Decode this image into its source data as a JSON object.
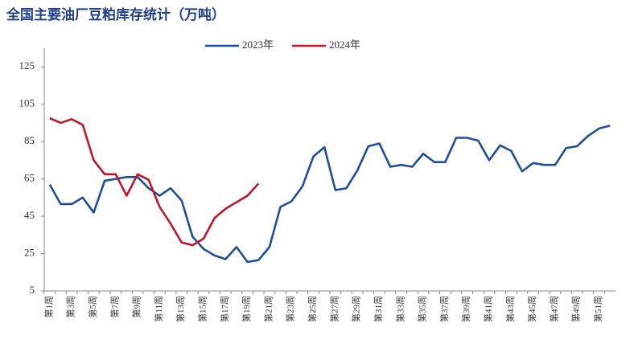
{
  "chart_data": {
    "type": "line",
    "title": "全国主要油厂豆粕库存统计（万吨）",
    "categories": [
      "第1周",
      null,
      "第3周",
      null,
      "第5周",
      null,
      "第7周",
      null,
      "第9周",
      null,
      "第11周",
      null,
      "第13周",
      null,
      "第15周",
      null,
      "第17周",
      null,
      "第19周",
      null,
      "第21周",
      null,
      "第23周",
      null,
      "第25周",
      null,
      "第27周",
      null,
      "第29周",
      null,
      "第31周",
      null,
      "第33周",
      null,
      "第35周",
      null,
      "第37周",
      null,
      "第39周",
      null,
      "第41周",
      null,
      "第43周",
      null,
      "第45周",
      null,
      "第47周",
      null,
      "第49周",
      null,
      "第51周",
      null
    ],
    "series": [
      {
        "name": "2023年",
        "color": "#1f4e9a",
        "values": [
          62,
          51.5,
          51.5,
          55,
          47,
          64,
          65,
          66,
          66,
          60,
          56,
          60,
          53.5,
          34,
          27.5,
          24,
          22,
          28.5,
          20.5,
          21.5,
          28.5,
          50,
          53,
          61,
          77,
          82,
          59,
          60,
          69.5,
          82.5,
          84,
          71.5,
          72.5,
          71.5,
          78.5,
          74,
          74,
          87,
          87,
          85.5,
          75,
          83,
          80,
          69,
          73.5,
          72.5,
          72.5,
          81.5,
          82.5,
          88,
          92,
          93.5
        ]
      },
      {
        "name": "2024年",
        "color": "#c0172a",
        "values": [
          97.5,
          95,
          97,
          94,
          75,
          67.5,
          67.5,
          56,
          67.5,
          64.5,
          50,
          41,
          31,
          29.5,
          33,
          44,
          49,
          52.5,
          56,
          62.5,
          null,
          null,
          null,
          null,
          null,
          null,
          null,
          null,
          null,
          null,
          null,
          null,
          null,
          null,
          null,
          null,
          null,
          null,
          null,
          null,
          null,
          null,
          null,
          null,
          null,
          null,
          null,
          null,
          null,
          null,
          null,
          null
        ]
      }
    ],
    "ylim": [
      5,
      135
    ],
    "yticks": [
      5,
      25,
      45,
      65,
      85,
      105,
      125
    ],
    "legend": "top"
  }
}
